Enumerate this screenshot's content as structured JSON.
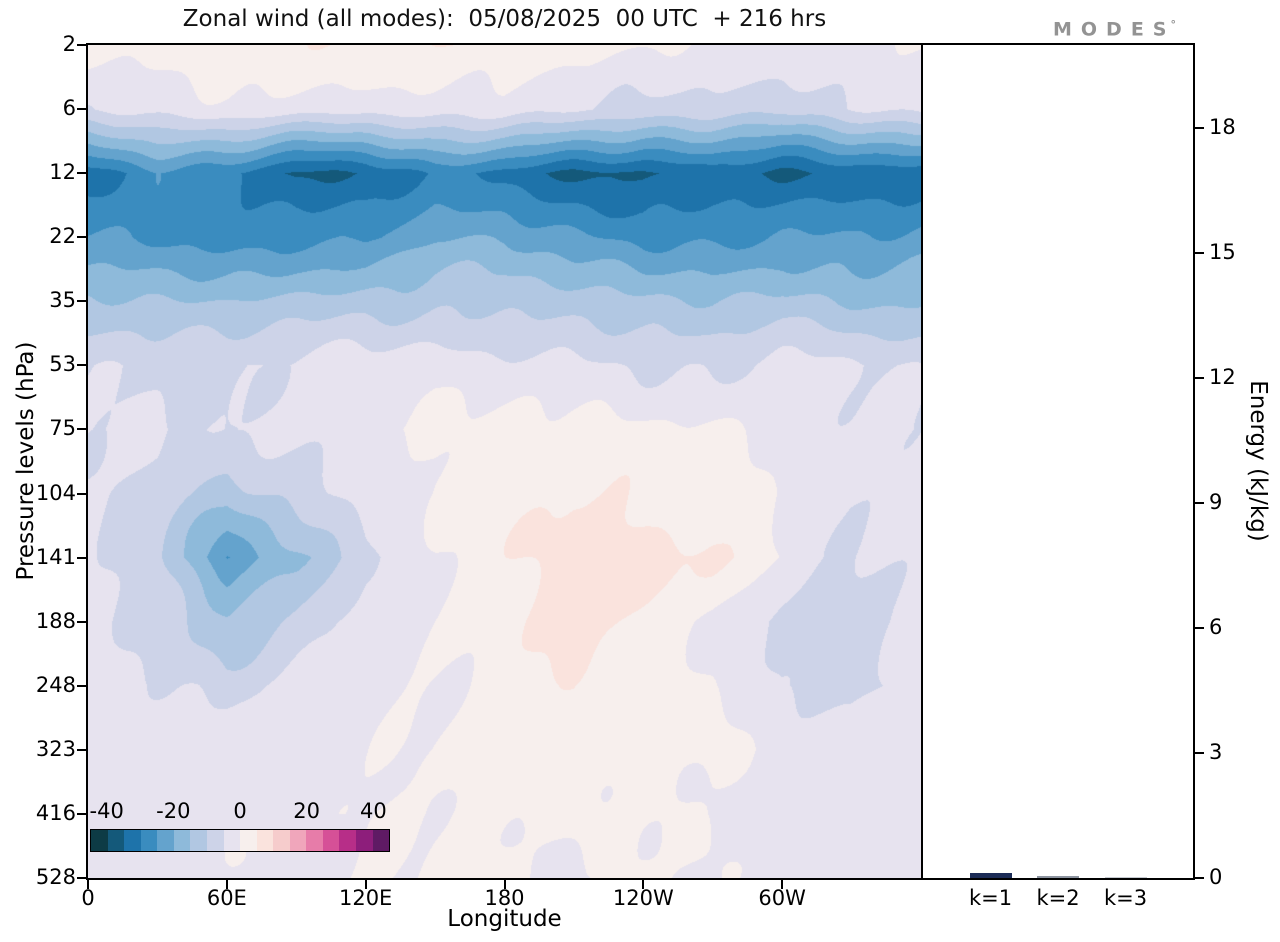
{
  "title": "Zonal wind (all modes):  05/08/2025  00 UTC  + 216 hrs",
  "logo": {
    "text": "MODES",
    "mark": "°"
  },
  "chart_data": [
    {
      "type": "heatmap",
      "title": "Zonal wind (all modes): 05/08/2025 00 UTC + 216 hrs",
      "xlabel": "Longitude",
      "ylabel": "Pressure levels (hPa)",
      "x_range": [
        0,
        360
      ],
      "x_ticks": [
        {
          "value": 0,
          "label": "0"
        },
        {
          "value": 60,
          "label": "60E"
        },
        {
          "value": 120,
          "label": "120E"
        },
        {
          "value": 180,
          "label": "180"
        },
        {
          "value": 240,
          "label": "120W"
        },
        {
          "value": 300,
          "label": "60W"
        }
      ],
      "y_levels": [
        2,
        6,
        12,
        22,
        35,
        53,
        75,
        104,
        141,
        188,
        248,
        323,
        416,
        528
      ],
      "x_grid": [
        0,
        30,
        60,
        90,
        120,
        150,
        180,
        210,
        240,
        270,
        300,
        330,
        360
      ],
      "values": [
        [
          1,
          2,
          4,
          3,
          5,
          6,
          4,
          2,
          1,
          -1,
          -3,
          -2,
          1
        ],
        [
          -4,
          -2,
          -1,
          -2,
          -4,
          -3,
          -2,
          -4,
          -6,
          -7,
          -8,
          -6,
          -4
        ],
        [
          -33,
          -27,
          -30,
          -36,
          -34,
          -28,
          -32,
          -36,
          -37,
          -34,
          -36,
          -33,
          -33
        ],
        [
          -24,
          -26,
          -28,
          -26,
          -27,
          -21,
          -20,
          -24,
          -27,
          -26,
          -24,
          -26,
          -24
        ],
        [
          -15,
          -16,
          -15,
          -13,
          -12,
          -11,
          -11,
          -13,
          -15,
          -15,
          -13,
          -15,
          -15
        ],
        [
          -6,
          -5,
          -5,
          -4,
          -3,
          -2,
          -3,
          -4,
          -5,
          -5,
          -4,
          -5,
          -6
        ],
        [
          -4,
          -4,
          -6,
          -3,
          -1,
          1,
          1,
          2,
          1,
          0,
          -2,
          -4,
          -4
        ],
        [
          -4,
          -7,
          -12,
          -8,
          -3,
          0,
          2,
          5,
          4,
          3,
          0,
          -4,
          -4
        ],
        [
          -3,
          -9,
          -25,
          -16,
          -5,
          0,
          3,
          8,
          7,
          5,
          0,
          -5,
          -3
        ],
        [
          -3,
          -7,
          -14,
          -9,
          -3,
          0,
          3,
          7,
          4,
          0,
          -7,
          -8,
          -3
        ],
        [
          -2,
          -4,
          -7,
          -4,
          -2,
          0,
          2,
          4,
          3,
          0,
          -6,
          -7,
          -2
        ],
        [
          -2,
          -3,
          -3,
          -2,
          -1,
          0,
          2,
          3,
          2,
          1,
          -2,
          -3,
          -2
        ],
        [
          -2,
          -2,
          -2,
          -1,
          0,
          1,
          1,
          1,
          0,
          -1,
          -2,
          -2,
          -2
        ],
        [
          -1,
          -2,
          -2,
          -1,
          0,
          1,
          1,
          0,
          0,
          -1,
          -2,
          -2,
          -1
        ]
      ],
      "contour_levels": {
        "min": -45,
        "max": 45,
        "step": 5
      },
      "colors": [
        "#0d3b45",
        "#14597a",
        "#1e73aa",
        "#3a8cbf",
        "#64a3cd",
        "#8ebada",
        "#b1c7e2",
        "#cdd3e8",
        "#e7e3ef",
        "#f7efed",
        "#fae3dd",
        "#f6cccc",
        "#f0a6bb",
        "#e77ca9",
        "#d65097",
        "#b72e88",
        "#8d1e7b",
        "#5f1a64"
      ],
      "colorbar_ticks": [
        -40,
        -20,
        0,
        20,
        40
      ]
    },
    {
      "type": "bar",
      "categories": [
        "k=1",
        "k=2",
        "k=3"
      ],
      "values": [
        0.12,
        0.04,
        0.02
      ],
      "bar_colors": [
        "#1b2b56",
        "#8d94a0",
        "#c6cad0"
      ],
      "ylabel": "Energy (kJ/kg)",
      "ylim": [
        0,
        20
      ],
      "y_ticks": [
        0,
        3,
        6,
        9,
        12,
        15,
        18
      ]
    }
  ]
}
